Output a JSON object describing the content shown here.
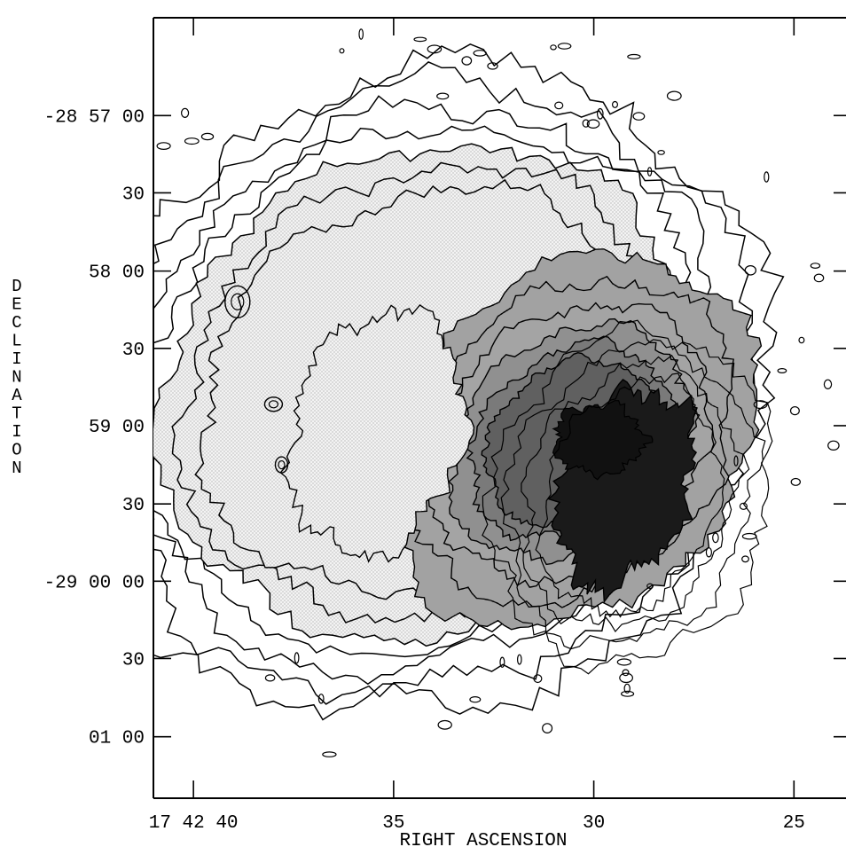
{
  "chart_data": {
    "type": "contour",
    "xlabel": "RIGHT ASCENSION",
    "ylabel": "DECLINATION",
    "x_ticks": [
      {
        "label": "17 42 40",
        "value": 40
      },
      {
        "label": "35",
        "value": 35
      },
      {
        "label": "30",
        "value": 30
      },
      {
        "label": "25",
        "value": 25
      }
    ],
    "y_ticks": [
      {
        "label": "-28 57 00",
        "value": -28.95
      },
      {
        "label": "30",
        "value": -28.9583
      },
      {
        "label": "58 00",
        "value": -28.9667
      },
      {
        "label": "30",
        "value": -28.975
      },
      {
        "label": "59 00",
        "value": -28.9833
      },
      {
        "label": "30",
        "value": -28.9917
      },
      {
        "label": "-29 00 00",
        "value": -29.0
      },
      {
        "label": "30",
        "value": -29.0083
      },
      {
        "label": "01 00",
        "value": -29.0167
      }
    ],
    "xlim": [
      41.0,
      23.7
    ],
    "ylim": [
      -29.0233,
      -28.9395
    ],
    "x_axis_reversed": true,
    "contour_levels": 20,
    "fill_scale": [
      "white",
      "light-stipple",
      "hatched-gray",
      "medium-gray",
      "dark-gray",
      "black"
    ],
    "peak_emission": {
      "ra": 29.2,
      "dec": -28.99
    }
  }
}
